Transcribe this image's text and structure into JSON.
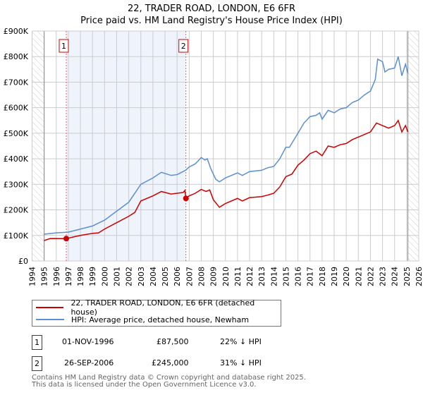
{
  "chart_data": {
    "type": "line",
    "title": "22, TRADER ROAD, LONDON, E6 6FR",
    "subtitle": "Price paid vs. HM Land Registry's House Price Index (HPI)",
    "xlim": [
      1994,
      2026
    ],
    "ylim": [
      0,
      900000
    ],
    "x_ticks": [
      "1994",
      "1995",
      "1996",
      "1997",
      "1998",
      "1999",
      "2000",
      "2001",
      "2002",
      "2003",
      "2004",
      "2005",
      "2006",
      "2007",
      "2008",
      "2009",
      "2010",
      "2011",
      "2012",
      "2013",
      "2014",
      "2015",
      "2016",
      "2017",
      "2018",
      "2019",
      "2020",
      "2021",
      "2022",
      "2023",
      "2024",
      "2025",
      "2026"
    ],
    "y_ticks": [
      "£0",
      "£100K",
      "£200K",
      "£300K",
      "£400K",
      "£500K",
      "£600K",
      "£700K",
      "£800K",
      "£900K"
    ],
    "grid": true,
    "data_range": [
      1995,
      2025.1
    ],
    "shaded_between_sales": [
      1996.83,
      2006.73
    ],
    "series": [
      {
        "name": "22, TRADER ROAD, LONDON, E6 6FR (detached house)",
        "color": "#cc0000",
        "x": [
          1995,
          1995.5,
          1996.83,
          1997.5,
          1998,
          1999,
          1999.5,
          2000,
          2001,
          2002,
          2002.5,
          2003,
          2004,
          2004.7,
          2005.5,
          2006.5,
          2006.65,
          2006.73,
          2007,
          2007.5,
          2008,
          2008.4,
          2008.7,
          2009,
          2009.5,
          2010,
          2011,
          2011.4,
          2012,
          2013,
          2013.5,
          2014,
          2014.5,
          2015,
          2015.5,
          2016,
          2016.5,
          2017,
          2017.5,
          2018,
          2018.5,
          2019,
          2019.5,
          2020,
          2020.5,
          2021,
          2021.5,
          2022,
          2022.5,
          2023,
          2023.5,
          2024,
          2024.3,
          2024.6,
          2024.9,
          2025.1
        ],
        "y": [
          80000,
          88000,
          87500,
          95000,
          100000,
          108000,
          110000,
          125000,
          150000,
          175000,
          190000,
          235000,
          255000,
          272000,
          262000,
          268000,
          276000,
          245000,
          255000,
          265000,
          280000,
          272000,
          278000,
          240000,
          210000,
          225000,
          245000,
          235000,
          248000,
          252000,
          258000,
          265000,
          290000,
          330000,
          340000,
          375000,
          395000,
          420000,
          430000,
          412000,
          450000,
          445000,
          455000,
          460000,
          475000,
          485000,
          495000,
          505000,
          540000,
          530000,
          520000,
          530000,
          550000,
          505000,
          530000,
          505000
        ]
      },
      {
        "name": "HPI: Average price, detached house, Newham",
        "color": "#5b8fd0",
        "x": [
          1995,
          1996,
          1997,
          1998,
          1999,
          2000,
          2001,
          2002,
          2003,
          2004,
          2004.7,
          2005.5,
          2006,
          2006.7,
          2007,
          2007.5,
          2008,
          2008.3,
          2008.5,
          2008.8,
          2009.2,
          2009.5,
          2010,
          2011,
          2011.4,
          2012,
          2013,
          2013.5,
          2014,
          2014.5,
          2015,
          2015.3,
          2016,
          2016.5,
          2017,
          2017.5,
          2017.8,
          2018,
          2018.5,
          2019,
          2019.5,
          2020,
          2020.5,
          2021,
          2021.5,
          2022,
          2022.4,
          2022.6,
          2023,
          2023.2,
          2023.5,
          2024,
          2024.3,
          2024.6,
          2024.9,
          2025.1
        ],
        "y": [
          105000,
          110000,
          113000,
          125000,
          137000,
          160000,
          195000,
          230000,
          300000,
          325000,
          347000,
          335000,
          338000,
          355000,
          368000,
          380000,
          405000,
          395000,
          400000,
          360000,
          320000,
          310000,
          325000,
          345000,
          335000,
          350000,
          355000,
          365000,
          370000,
          400000,
          445000,
          445000,
          500000,
          540000,
          565000,
          570000,
          580000,
          555000,
          590000,
          580000,
          595000,
          600000,
          620000,
          630000,
          650000,
          665000,
          710000,
          790000,
          780000,
          740000,
          750000,
          755000,
          800000,
          725000,
          770000,
          735000
        ]
      }
    ],
    "sales": [
      {
        "label": "1",
        "date": "01-NOV-1996",
        "x": 1996.83,
        "price": "£87,500",
        "value": 87500,
        "hpi": "22% ↓ HPI"
      },
      {
        "label": "2",
        "date": "26-SEP-2006",
        "x": 2006.73,
        "price": "£245,000",
        "value": 245000,
        "hpi": "31% ↓ HPI"
      }
    ]
  },
  "footer": {
    "line1": "Contains HM Land Registry data © Crown copyright and database right 2025.",
    "line2": "This data is licensed under the Open Government Licence v3.0."
  }
}
